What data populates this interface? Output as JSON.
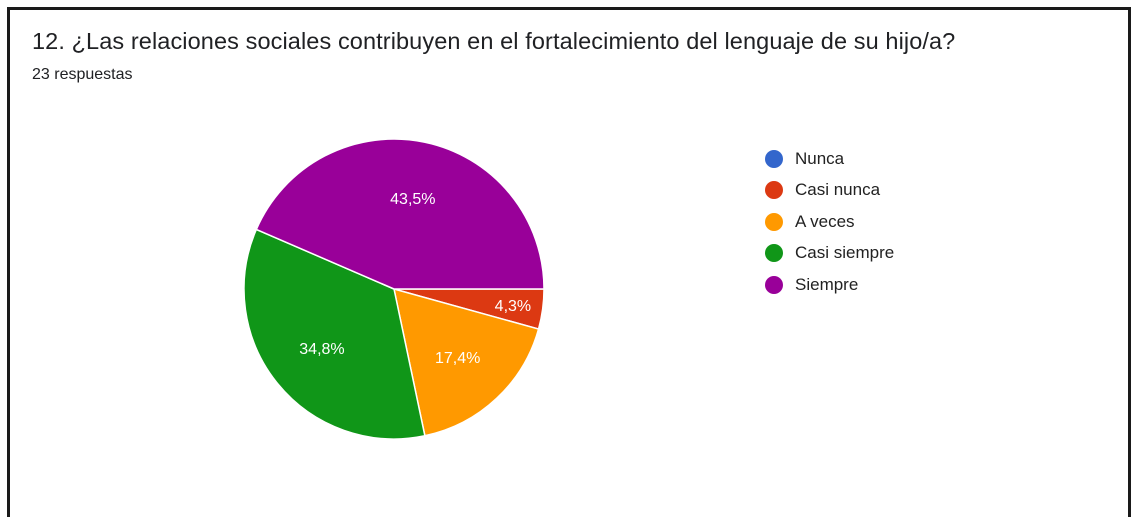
{
  "question": {
    "title": "12. ¿Las relaciones sociales contribuyen en el fortalecimiento del lenguaje de su hijo/a?",
    "responses": "23 respuestas"
  },
  "chart_data": {
    "type": "pie",
    "categories": [
      "Nunca",
      "Casi nunca",
      "A veces",
      "Casi siempre",
      "Siempre"
    ],
    "values": [
      0,
      4.3,
      17.4,
      34.8,
      43.5
    ],
    "labels": [
      "",
      "4,3%",
      "17,4%",
      "34,8%",
      "43,5%"
    ],
    "colors": [
      "#3366cc",
      "#dc3912",
      "#ff9900",
      "#109618",
      "#990099"
    ],
    "legend_position": "right"
  }
}
